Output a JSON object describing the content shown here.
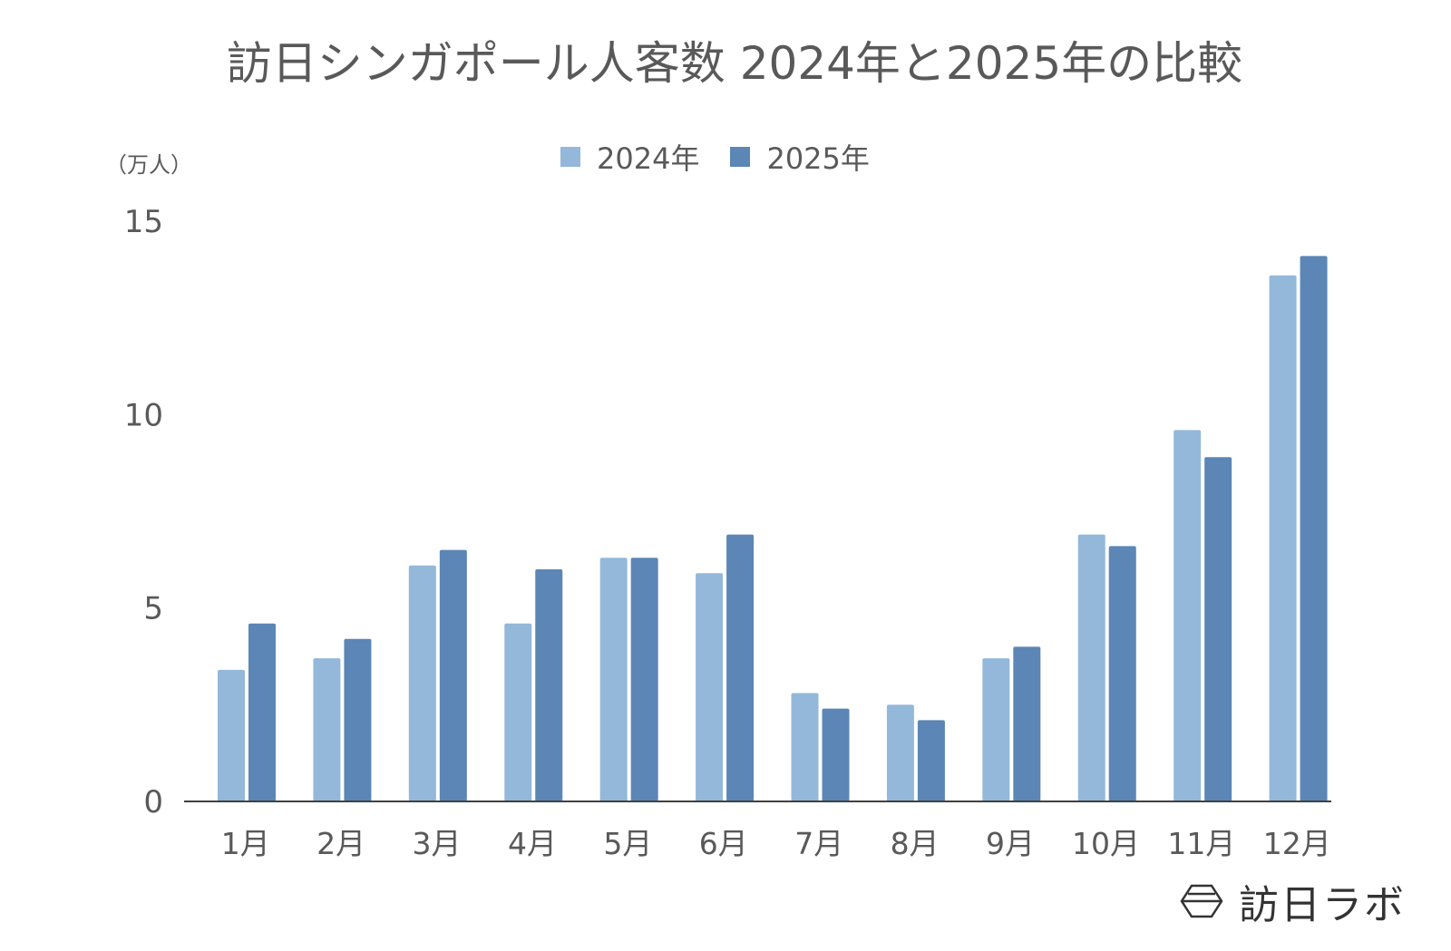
{
  "chart_data": {
    "type": "bar",
    "title": "訪日シンガポール人客数 2024年と2025年の比較",
    "unit_label": "（万人）",
    "categories": [
      "1月",
      "2月",
      "3月",
      "4月",
      "5月",
      "6月",
      "7月",
      "8月",
      "9月",
      "10月",
      "11月",
      "12月"
    ],
    "series": [
      {
        "name": "2024年",
        "color": "#93b8d9",
        "values": [
          3.4,
          3.7,
          6.1,
          4.6,
          6.3,
          5.9,
          2.8,
          2.5,
          3.7,
          6.9,
          9.6,
          13.6
        ]
      },
      {
        "name": "2025年",
        "color": "#5b86b6",
        "values": [
          4.6,
          4.2,
          6.5,
          6.0,
          6.3,
          6.9,
          2.4,
          2.1,
          4.0,
          6.6,
          8.9,
          14.1
        ]
      }
    ],
    "ylim": [
      0,
      15
    ],
    "yticks": [
      "0",
      "5",
      "10",
      "15"
    ],
    "grid": false,
    "legend": "top-center"
  },
  "logo": {
    "text": "訪日ラボ"
  }
}
